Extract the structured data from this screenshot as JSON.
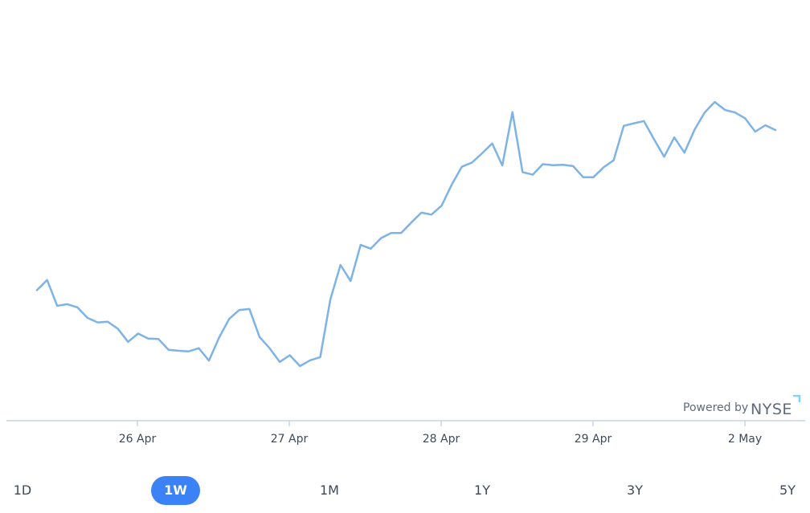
{
  "chart_data": {
    "type": "line",
    "title": "",
    "xlabel": "",
    "ylabel": "",
    "x_ticks": [
      "26 Apr",
      "27 Apr",
      "28 Apr",
      "29 Apr",
      "2 May"
    ],
    "y_axis_visible": false,
    "grid": false,
    "line_color": "#7db3e6",
    "series": [
      {
        "values": [
          55.4,
          61.8,
          45.6,
          46.6,
          44.6,
          38.0,
          35.2,
          35.6,
          31.2,
          23.0,
          28.2,
          25.0,
          24.8,
          18.0,
          17.4,
          17.0,
          19.0,
          11.2,
          25.6,
          37.4,
          43.0,
          43.6,
          26.0,
          19.0,
          10.4,
          14.6,
          7.8,
          11.4,
          13.4,
          49.6,
          71.2,
          61.2,
          83.8,
          81.4,
          88.0,
          91.2,
          91.2,
          97.8,
          104.0,
          102.8,
          108.4,
          121.6,
          132.8,
          135.4,
          141.2,
          147.4,
          133.6,
          167.0,
          129.4,
          127.8,
          134.4,
          133.8,
          134.0,
          133.2,
          126.2,
          126.2,
          132.4,
          136.8,
          158.4,
          160.0,
          161.4,
          150.0,
          139.0,
          151.2,
          141.6,
          156.0,
          166.8,
          173.4,
          168.4,
          166.8,
          163.2,
          154.8,
          158.8,
          155.8
        ]
      }
    ]
  },
  "attribution": {
    "text": "Powered by",
    "brand": "NYSE"
  },
  "ranges": {
    "items": [
      {
        "label": "1D",
        "active": false
      },
      {
        "label": "1W",
        "active": true
      },
      {
        "label": "1M",
        "active": false
      },
      {
        "label": "1Y",
        "active": false
      },
      {
        "label": "3Y",
        "active": false
      },
      {
        "label": "5Y",
        "active": false
      }
    ]
  },
  "colors": {
    "accent": "#3b82f6",
    "axis": "#c8d3df",
    "text": "#3d4a5c",
    "logo_corner": "#7dd3fc"
  }
}
